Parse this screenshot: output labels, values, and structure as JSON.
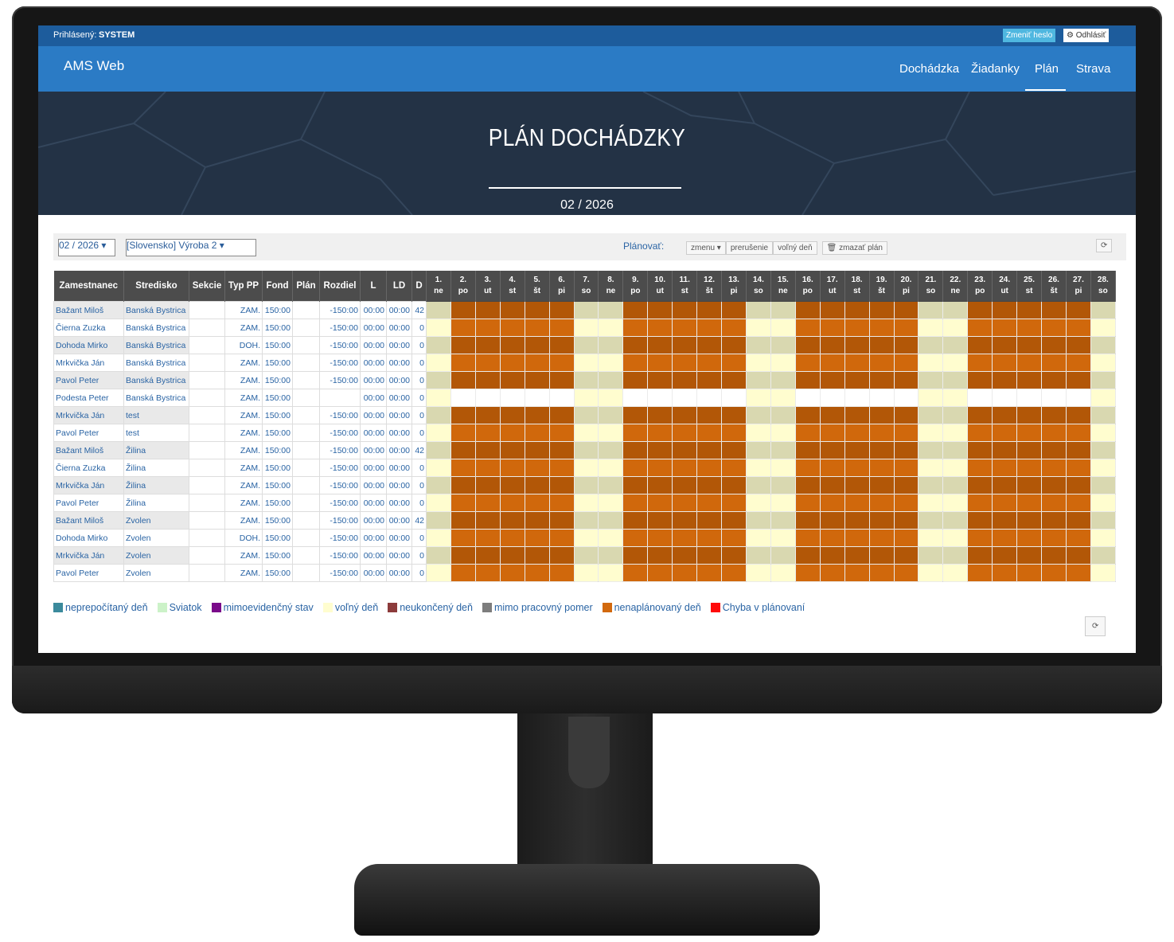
{
  "topbar": {
    "logged_label": "Prihlásený:",
    "user": "SYSTEM",
    "buttons": [
      "Zmeniť heslo",
      "Odhlásiť"
    ]
  },
  "navbar": {
    "brand": "AMS Web",
    "items": [
      "Dochádzka",
      "Žiadanky",
      "Plán",
      "Strava"
    ],
    "active": 2
  },
  "hero": {
    "title": "PLÁN DOCHÁDZKY",
    "subtitle": "02 / 2026"
  },
  "toolbar": {
    "month_select": "02 / 2026",
    "center_select": "[Slovensko] Výroba 2",
    "plan_label": "Plánovať:",
    "plan_buttons": [
      "zmenu",
      "prerušenie",
      "voľný deň",
      "zmazať plán"
    ]
  },
  "table": {
    "headers": [
      "Zamestnanec",
      "Stredisko",
      "Sekcie",
      "Typ PP",
      "Fond",
      "Plán",
      "Rozdiel",
      "L",
      "LD",
      "D"
    ],
    "days": [
      {
        "num": "1.",
        "abbr": "ne",
        "weekend": true
      },
      {
        "num": "2.",
        "abbr": "po"
      },
      {
        "num": "3.",
        "abbr": "ut"
      },
      {
        "num": "4.",
        "abbr": "st"
      },
      {
        "num": "5.",
        "abbr": "št"
      },
      {
        "num": "6.",
        "abbr": "pi"
      },
      {
        "num": "7.",
        "abbr": "so",
        "weekend": true
      },
      {
        "num": "8.",
        "abbr": "ne",
        "weekend": true
      },
      {
        "num": "9.",
        "abbr": "po"
      },
      {
        "num": "10.",
        "abbr": "ut"
      },
      {
        "num": "11.",
        "abbr": "st"
      },
      {
        "num": "12.",
        "abbr": "št"
      },
      {
        "num": "13.",
        "abbr": "pi"
      },
      {
        "num": "14.",
        "abbr": "so",
        "weekend": true
      },
      {
        "num": "15.",
        "abbr": "ne",
        "weekend": true
      },
      {
        "num": "16.",
        "abbr": "po"
      },
      {
        "num": "17.",
        "abbr": "ut"
      },
      {
        "num": "18.",
        "abbr": "st"
      },
      {
        "num": "19.",
        "abbr": "št"
      },
      {
        "num": "20.",
        "abbr": "pi"
      },
      {
        "num": "21.",
        "abbr": "so",
        "weekend": true
      },
      {
        "num": "22.",
        "abbr": "ne",
        "weekend": true
      },
      {
        "num": "23.",
        "abbr": "po"
      },
      {
        "num": "24.",
        "abbr": "ut"
      },
      {
        "num": "25.",
        "abbr": "st"
      },
      {
        "num": "26.",
        "abbr": "št"
      },
      {
        "num": "27.",
        "abbr": "pi"
      },
      {
        "num": "28.",
        "abbr": "so",
        "weekend": true
      }
    ],
    "rows": [
      {
        "cells": [
          "Bažant Miloš",
          "Banská Bystrica",
          null,
          "ZAM.",
          "150:00",
          null,
          "-150:00",
          "00:00",
          "00:00",
          "42"
        ],
        "unplanned": true
      },
      {
        "cells": [
          "Čierna Zuzka",
          "Banská Bystrica",
          null,
          "ZAM.",
          "150:00",
          null,
          "-150:00",
          "00:00",
          "00:00",
          "0"
        ],
        "unplanned": true
      },
      {
        "cells": [
          "Dohoda Mirko",
          "Banská Bystrica",
          null,
          "DOH.",
          "150:00",
          null,
          "-150:00",
          "00:00",
          "00:00",
          "0"
        ],
        "unplanned": true
      },
      {
        "cells": [
          "Mrkvička Ján",
          "Banská Bystrica",
          null,
          "ZAM.",
          "150:00",
          null,
          "-150:00",
          "00:00",
          "00:00",
          "0"
        ],
        "unplanned": true
      },
      {
        "cells": [
          "Pavol Peter",
          "Banská Bystrica",
          null,
          "ZAM.",
          "150:00",
          null,
          "-150:00",
          "00:00",
          "00:00",
          "0"
        ],
        "unplanned": true
      },
      {
        "cells": [
          "Podesta Peter",
          "Banská Bystrica",
          null,
          "ZAM.",
          "150:00",
          null,
          null,
          "00:00",
          "00:00",
          "0"
        ],
        "unplanned": false
      },
      {
        "cells": [
          "Mrkvička Ján",
          "test",
          null,
          "ZAM.",
          "150:00",
          null,
          "-150:00",
          "00:00",
          "00:00",
          "0"
        ],
        "unplanned": true
      },
      {
        "cells": [
          "Pavol Peter",
          "test",
          null,
          "ZAM.",
          "150:00",
          null,
          "-150:00",
          "00:00",
          "00:00",
          "0"
        ],
        "unplanned": true
      },
      {
        "cells": [
          "Bažant Miloš",
          "Žilina",
          null,
          "ZAM.",
          "150:00",
          null,
          "-150:00",
          "00:00",
          "00:00",
          "42"
        ],
        "unplanned": true
      },
      {
        "cells": [
          "Čierna Zuzka",
          "Žilina",
          null,
          "ZAM.",
          "150:00",
          null,
          "-150:00",
          "00:00",
          "00:00",
          "0"
        ],
        "unplanned": true
      },
      {
        "cells": [
          "Mrkvička Ján",
          "Žilina",
          null,
          "ZAM.",
          "150:00",
          null,
          "-150:00",
          "00:00",
          "00:00",
          "0"
        ],
        "unplanned": true
      },
      {
        "cells": [
          "Pavol Peter",
          "Žilina",
          null,
          "ZAM.",
          "150:00",
          null,
          "-150:00",
          "00:00",
          "00:00",
          "0"
        ],
        "unplanned": true
      },
      {
        "cells": [
          "Bažant Miloš",
          "Zvolen",
          null,
          "ZAM.",
          "150:00",
          null,
          "-150:00",
          "00:00",
          "00:00",
          "42"
        ],
        "unplanned": true
      },
      {
        "cells": [
          "Dohoda Mirko",
          "Zvolen",
          null,
          "DOH.",
          "150:00",
          null,
          "-150:00",
          "00:00",
          "00:00",
          "0"
        ],
        "unplanned": true
      },
      {
        "cells": [
          "Mrkvička Ján",
          "Zvolen",
          null,
          "ZAM.",
          "150:00",
          null,
          "-150:00",
          "00:00",
          "00:00",
          "0"
        ],
        "unplanned": true
      },
      {
        "cells": [
          "Pavol Peter",
          "Zvolen",
          null,
          "ZAM.",
          "150:00",
          null,
          "-150:00",
          "00:00",
          "00:00",
          "0"
        ],
        "unplanned": true
      }
    ]
  },
  "legend": [
    {
      "label": "neprepočítaný deň",
      "color": "#3b8a9c"
    },
    {
      "label": "Sviatok",
      "color": "#ccf2c8"
    },
    {
      "label": "mimoevidenčný stav",
      "color": "#7a0a8a"
    },
    {
      "label": "voľný deň",
      "color": "#fffdcf"
    },
    {
      "label": "neukončený deň",
      "color": "#8c3b3b"
    },
    {
      "label": "mimo pracovný pomer",
      "color": "#7d7d7d"
    },
    {
      "label": "nenaplánovaný deň",
      "color": "#d2690e"
    },
    {
      "label": "Chyba v plánovaní",
      "color": "#ff0a0a"
    }
  ]
}
